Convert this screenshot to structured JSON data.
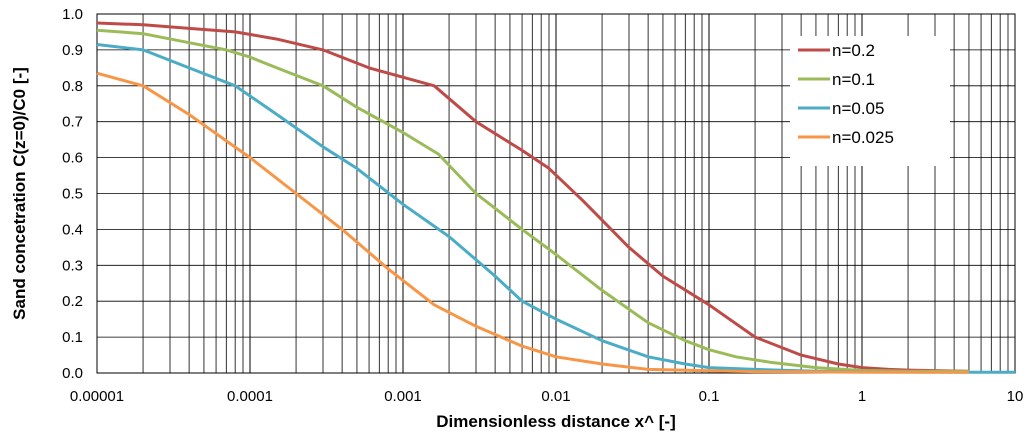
{
  "chart_data": {
    "type": "line",
    "title": "",
    "xlabel": "Dimensionless distance  x^ [-]",
    "ylabel": "Sand concetration  C(z=0)/C0 [-]",
    "xscale": "log",
    "xlim": [
      1e-05,
      10
    ],
    "ylim": [
      0,
      1.0
    ],
    "grid": "vertical log minor + horizontal major",
    "legend_position": "top-right",
    "x_tick_labels": [
      "0.00001",
      "0.0001",
      "0.001",
      "0.01",
      "0.1",
      "1",
      "10"
    ],
    "y_tick_labels": [
      "0.0",
      "0.1",
      "0.2",
      "0.3",
      "0.4",
      "0.5",
      "0.6",
      "0.7",
      "0.8",
      "0.9",
      "1.0"
    ],
    "series": [
      {
        "name": "n=0.2",
        "color": "#be4b48",
        "x": [
          1e-05,
          2e-05,
          4e-05,
          8e-05,
          0.00015,
          0.0003,
          0.0006,
          0.0016,
          0.003,
          0.006,
          0.009,
          0.015,
          0.03,
          0.05,
          0.1,
          0.2,
          0.4,
          0.7,
          1,
          1.5,
          2,
          5
        ],
        "y": [
          0.975,
          0.97,
          0.96,
          0.95,
          0.93,
          0.9,
          0.85,
          0.8,
          0.7,
          0.62,
          0.57,
          0.48,
          0.35,
          0.27,
          0.19,
          0.1,
          0.05,
          0.025,
          0.015,
          0.01,
          0.008,
          0.005
        ]
      },
      {
        "name": "n=0.1",
        "color": "#9bbb59",
        "x": [
          1e-05,
          2e-05,
          4e-05,
          7e-05,
          0.0001,
          0.00015,
          0.0003,
          0.0005,
          0.001,
          0.0017,
          0.003,
          0.006,
          0.01,
          0.02,
          0.04,
          0.07,
          0.1,
          0.15,
          0.25,
          0.5,
          1,
          2,
          5
        ],
        "y": [
          0.955,
          0.945,
          0.92,
          0.9,
          0.88,
          0.85,
          0.8,
          0.74,
          0.67,
          0.61,
          0.5,
          0.4,
          0.33,
          0.23,
          0.14,
          0.09,
          0.065,
          0.045,
          0.03,
          0.015,
          0.007,
          0.005,
          0.005
        ]
      },
      {
        "name": "n=0.05",
        "color": "#4bacc6",
        "x": [
          1e-05,
          2e-05,
          4e-05,
          8e-05,
          0.00015,
          0.0003,
          0.0005,
          0.001,
          0.002,
          0.004,
          0.006,
          0.01,
          0.02,
          0.04,
          0.07,
          0.1,
          0.2,
          0.5,
          1,
          5,
          10
        ],
        "y": [
          0.915,
          0.9,
          0.85,
          0.8,
          0.72,
          0.63,
          0.57,
          0.47,
          0.38,
          0.27,
          0.2,
          0.15,
          0.09,
          0.045,
          0.025,
          0.015,
          0.01,
          0.005,
          0.003,
          0.002,
          0.002
        ]
      },
      {
        "name": "n=0.025",
        "color": "#f79646",
        "x": [
          1e-05,
          2e-05,
          4e-05,
          0.0001,
          0.0002,
          0.0004,
          0.0008,
          0.0016,
          0.003,
          0.006,
          0.01,
          0.02,
          0.04,
          0.1,
          0.2,
          0.5,
          1,
          5
        ],
        "y": [
          0.835,
          0.8,
          0.72,
          0.6,
          0.5,
          0.4,
          0.29,
          0.19,
          0.13,
          0.075,
          0.045,
          0.025,
          0.01,
          0.006,
          0.004,
          0.003,
          0.002,
          0.002
        ]
      }
    ]
  }
}
